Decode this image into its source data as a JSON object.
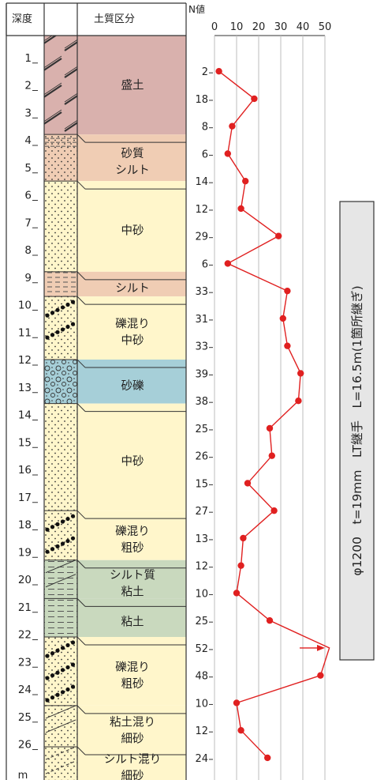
{
  "header": {
    "depth": "深度",
    "soil_class": "土質区分",
    "n_value": "N値",
    "axis_ticks": [
      "0",
      "10",
      "20",
      "30",
      "40",
      "50"
    ]
  },
  "depth_unit": "m",
  "depth_labels": [
    "1",
    "2",
    "3",
    "4",
    "5",
    "6",
    "7",
    "8",
    "9",
    "10",
    "11",
    "12",
    "13",
    "14",
    "15",
    "16",
    "17",
    "18",
    "19",
    "20",
    "21",
    "22",
    "23",
    "24",
    "25",
    "26"
  ],
  "layers": [
    {
      "lines": [
        "盛土"
      ],
      "top": 0,
      "bottom": 3.6,
      "color": "#d9b1ad",
      "pattern": "fill"
    },
    {
      "lines": [
        "砂質",
        "シルト"
      ],
      "top": 3.6,
      "bottom": 5.3,
      "color": "#f0cdb4",
      "pattern": "sandy-silt"
    },
    {
      "lines": [
        "中砂"
      ],
      "top": 5.3,
      "bottom": 8.6,
      "color": "#fff6cb",
      "pattern": "sand"
    },
    {
      "lines": [
        "シルト"
      ],
      "top": 8.6,
      "bottom": 9.5,
      "color": "#f0cdb4",
      "pattern": "silt"
    },
    {
      "lines": [
        "礫混り",
        "中砂"
      ],
      "top": 9.5,
      "bottom": 11.8,
      "color": "#fff6cb",
      "pattern": "gravel-sand"
    },
    {
      "lines": [
        "砂礫"
      ],
      "top": 11.8,
      "bottom": 13.4,
      "color": "#a6cfd8",
      "pattern": "gravel"
    },
    {
      "lines": [
        "中砂"
      ],
      "top": 13.4,
      "bottom": 17.3,
      "color": "#fff6cb",
      "pattern": "sand"
    },
    {
      "lines": [
        "礫混り",
        "粗砂"
      ],
      "top": 17.3,
      "bottom": 19.1,
      "color": "#fff6cb",
      "pattern": "gravel-sand"
    },
    {
      "lines": [
        "シルト質",
        "粘土"
      ],
      "top": 19.1,
      "bottom": 20.5,
      "color": "#c9d9be",
      "pattern": "silty-clay"
    },
    {
      "lines": [
        "粘土"
      ],
      "top": 20.5,
      "bottom": 21.9,
      "color": "#c9d9be",
      "pattern": "clay"
    },
    {
      "lines": [
        "礫混り",
        "粗砂"
      ],
      "top": 21.9,
      "bottom": 24.4,
      "color": "#fff6cb",
      "pattern": "gravel-sand"
    },
    {
      "lines": [
        "粘土混り",
        "細砂"
      ],
      "top": 24.4,
      "bottom": 25.9,
      "color": "#fff6cb",
      "pattern": "clayey-sand"
    },
    {
      "lines": [
        "シルト混り",
        "細砂"
      ],
      "top": 25.9,
      "bottom": 27.5,
      "color": "#fff6cb",
      "pattern": "silty-sand"
    }
  ],
  "chart_data": {
    "type": "line",
    "title": "",
    "xlabel": "N値",
    "ylabel": "深度",
    "xlim": [
      0,
      50
    ],
    "x_ticks": [
      0,
      10,
      20,
      30,
      40,
      50
    ],
    "grid": true,
    "series": [
      {
        "depth": [
          1.3,
          2.3,
          3.3,
          4.3,
          5.3,
          6.3,
          7.3,
          8.3,
          9.3,
          10.3,
          11.3,
          12.3,
          13.3,
          14.3,
          15.3,
          16.3,
          17.3,
          18.3,
          19.3,
          20.3,
          21.3,
          22.3,
          23.3,
          24.3,
          25.3,
          26.3
        ],
        "values": [
          2,
          18,
          8,
          6,
          14,
          12,
          29,
          6,
          33,
          31,
          33,
          39,
          38,
          25,
          26,
          15,
          27,
          13,
          12,
          10,
          25,
          52,
          48,
          10,
          12,
          24
        ],
        "color": "#e02020"
      }
    ]
  },
  "pile_label": "φ1200　t=19mm　LT継手　L=16.5m(1箇所継ぎ)",
  "colors": {
    "line": "#e02020",
    "border": "#333333",
    "label_box": "#e6e6e6"
  }
}
